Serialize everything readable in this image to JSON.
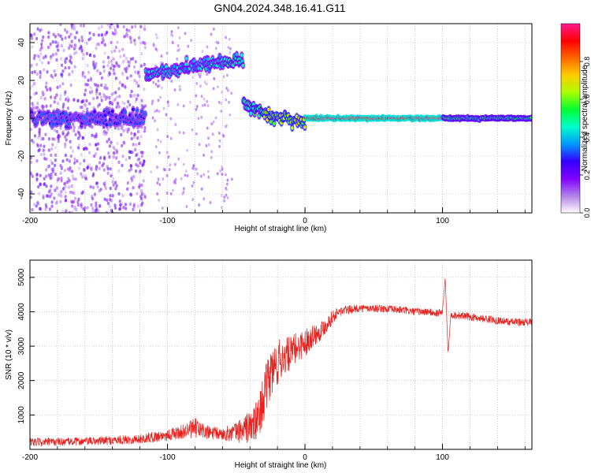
{
  "figure_title": "GN04.2024.348.16.41.G11",
  "colors": {
    "series_line": "#e8211e",
    "axis": "#000000",
    "gridline": "#b0b0b0"
  },
  "colorbar": {
    "label": "Normalized spectral amplitude",
    "ticks": [
      "0.0",
      "0.2",
      "0.4",
      "0.6",
      "0.8"
    ],
    "colormap": [
      "#ffffff",
      "#b17fe8",
      "#8000ff",
      "#3300ff",
      "#0099ff",
      "#00ffcc",
      "#00ff33",
      "#aaff00",
      "#ffcc00",
      "#ff6600",
      "#ff0000",
      "#ff1a8c"
    ]
  },
  "chart_data": [
    {
      "type": "heatmap",
      "title": "GN04.2024.348.16.41.G11",
      "xlabel": "Height of straight line (km)",
      "ylabel": "Frequency (Hz)",
      "xlim": [
        -200,
        165
      ],
      "ylim": [
        -50,
        50
      ],
      "x_ticks": [
        "-200",
        "-100",
        "0",
        "100"
      ],
      "y_ticks": [
        "40",
        "20",
        "0",
        "-20",
        "-40"
      ],
      "grid": true,
      "color_label": "Normalized spectral amplitude",
      "color_range": [
        0,
        1
      ],
      "segments": [
        {
          "x_range": [
            -200,
            -116
          ],
          "frequency": 0,
          "amplitude": 0.3,
          "note": "noisy, scattered background"
        },
        {
          "x_range": [
            -116,
            -90
          ],
          "frequency_start": 23,
          "frequency_end": 26,
          "amplitude": 0.4
        },
        {
          "x_range": [
            -90,
            -60
          ],
          "frequency_start": 27,
          "frequency_end": 30,
          "amplitude": 0.4
        },
        {
          "x_range": [
            -60,
            -45
          ],
          "frequency_start": 29,
          "frequency_end": 31,
          "amplitude": 0.45
        },
        {
          "x_range": [
            -45,
            -30
          ],
          "frequency_start": 8,
          "frequency_end": 3,
          "amplitude": 0.5
        },
        {
          "x_range": [
            -30,
            0
          ],
          "frequency_start": 2,
          "frequency_end": -2,
          "amplitude": 0.65
        },
        {
          "x_range": [
            0,
            100
          ],
          "frequency": 0,
          "amplitude": 0.95
        },
        {
          "x_range": [
            100,
            165
          ],
          "frequency": 0,
          "amplitude": 0.5
        }
      ]
    },
    {
      "type": "line",
      "xlabel": "Height of straight line (km)",
      "ylabel": "SNR (10 * v/v)",
      "xlim": [
        -200,
        165
      ],
      "ylim": [
        0,
        5500
      ],
      "x_ticks": [
        "-200",
        "-100",
        "0",
        "100"
      ],
      "y_ticks": [
        "1000",
        "2000",
        "3000",
        "4000",
        "5000"
      ],
      "grid": true,
      "series": [
        {
          "x": [
            -200,
            -180,
            -160,
            -140,
            -120,
            -100,
            -90,
            -80,
            -70,
            -60,
            -50,
            -40,
            -35,
            -30,
            -25,
            -20,
            -15,
            -10,
            -5,
            0,
            5,
            10,
            15,
            20,
            25,
            30,
            40,
            50,
            60,
            70,
            80,
            90,
            95,
            100,
            102,
            104,
            106,
            110,
            120,
            130,
            140,
            150,
            165
          ],
          "y": [
            200,
            220,
            230,
            260,
            300,
            420,
            500,
            620,
            480,
            440,
            500,
            650,
            800,
            1500,
            2200,
            2500,
            2700,
            2800,
            3000,
            3100,
            3300,
            3400,
            3600,
            3850,
            4000,
            4050,
            4100,
            4100,
            4080,
            4050,
            4000,
            4000,
            3950,
            4000,
            5000,
            2800,
            3900,
            3900,
            3850,
            3800,
            3750,
            3700,
            3700
          ],
          "noise": [
            120,
            120,
            120,
            130,
            140,
            180,
            200,
            300,
            220,
            180,
            300,
            500,
            600,
            700,
            800,
            700,
            550,
            500,
            450,
            400,
            350,
            300,
            250,
            200,
            150,
            130,
            110,
            110,
            110,
            110,
            110,
            110,
            110,
            110,
            0,
            0,
            110,
            110,
            110,
            110,
            110,
            110,
            110
          ]
        }
      ]
    }
  ]
}
